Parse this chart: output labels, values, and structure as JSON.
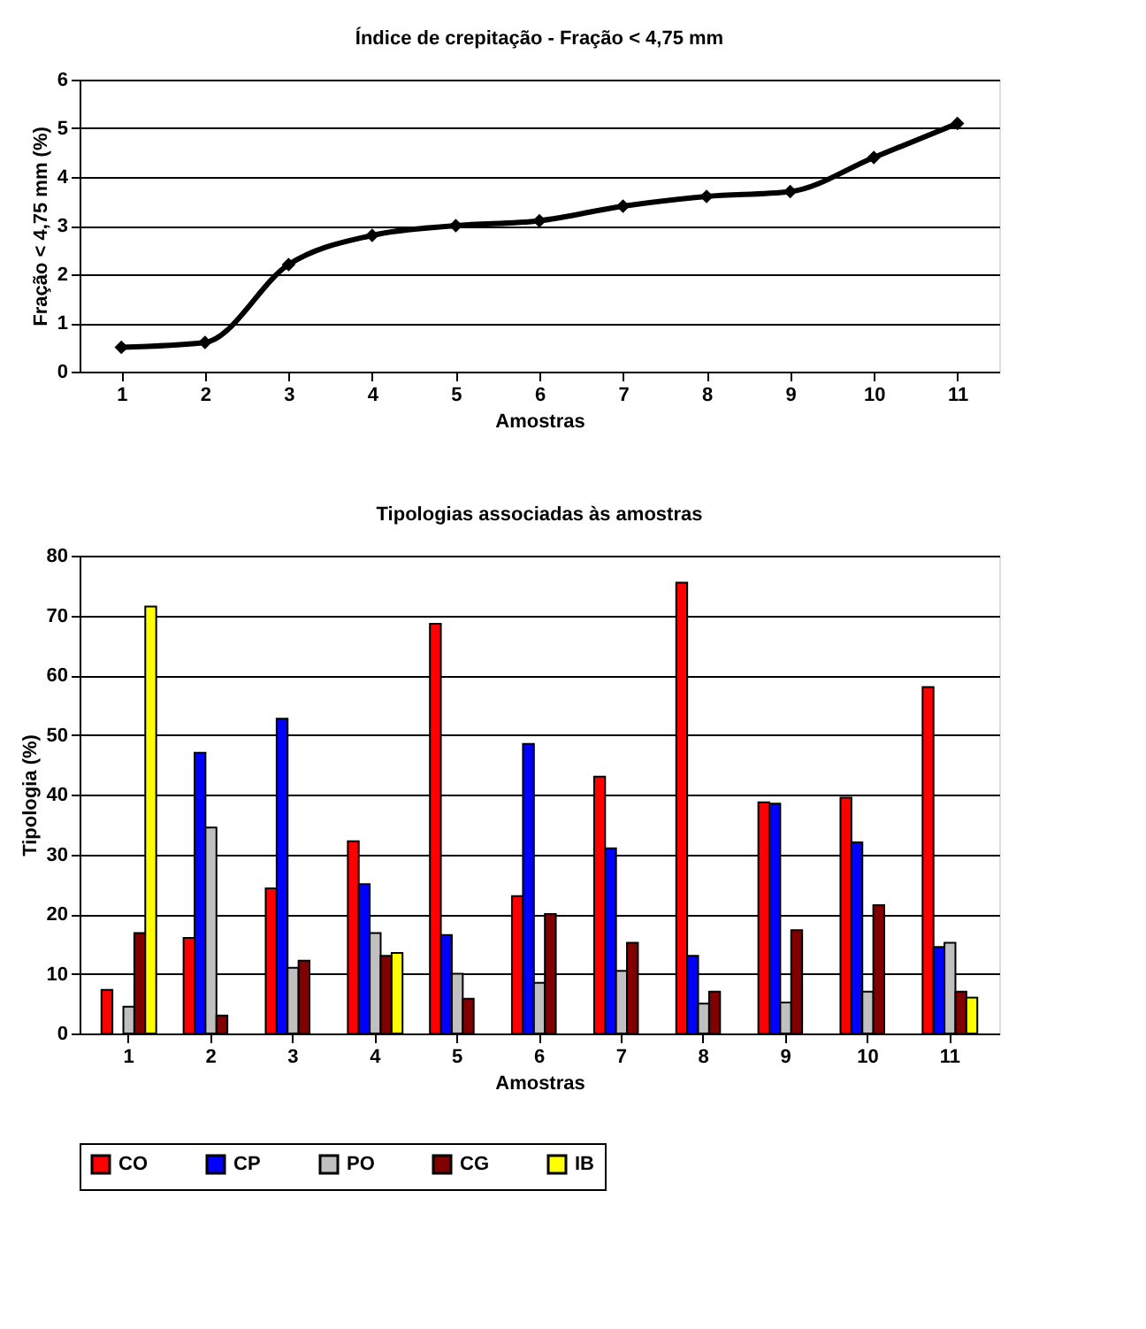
{
  "chart_data": [
    {
      "type": "line",
      "title": "Índice de crepitação - Fração < 4,75 mm",
      "xlabel": "Amostras",
      "ylabel": "Fração < 4,75 mm (%)",
      "categories": [
        "1",
        "2",
        "3",
        "4",
        "5",
        "6",
        "7",
        "8",
        "9",
        "10",
        "11"
      ],
      "series": [
        {
          "color": "#000000",
          "values": [
            0.5,
            0.6,
            2.2,
            2.8,
            3.0,
            3.1,
            3.4,
            3.6,
            3.7,
            4.4,
            5.1
          ]
        }
      ],
      "ylim": [
        0,
        6
      ],
      "yticks": [
        0,
        1,
        2,
        3,
        4,
        5,
        6
      ],
      "grid": "y",
      "marker": "diamond",
      "line_style": "solid"
    },
    {
      "type": "bar",
      "title": "Tipologias associadas às amostras",
      "xlabel": "Amostras",
      "ylabel": "Tipologia (%)",
      "categories": [
        "1",
        "2",
        "3",
        "4",
        "5",
        "6",
        "7",
        "8",
        "9",
        "10",
        "11"
      ],
      "series": [
        {
          "name": "CO",
          "color": "#ff0000",
          "values": [
            7.3,
            16,
            24.3,
            32.2,
            68.6,
            23,
            43,
            75.5,
            38.7,
            39.5,
            58
          ]
        },
        {
          "name": "CP",
          "color": "#0000ff",
          "values": [
            null,
            47,
            52.7,
            25,
            16.5,
            48.5,
            31,
            13,
            38.5,
            32,
            14.5
          ]
        },
        {
          "name": "PO",
          "color": "#c0c0c0",
          "values": [
            4.5,
            34.5,
            11,
            16.8,
            10,
            8.5,
            10.5,
            5,
            5.2,
            7,
            15.2
          ]
        },
        {
          "name": "CG",
          "color": "#800000",
          "values": [
            16.8,
            3,
            12.2,
            13,
            5.8,
            20,
            15.2,
            7,
            17.3,
            21.5,
            7
          ]
        },
        {
          "name": "IB",
          "color": "#ffff00",
          "values": [
            71.5,
            null,
            null,
            13.5,
            null,
            null,
            null,
            null,
            null,
            null,
            6
          ]
        }
      ],
      "ylim": [
        0,
        80
      ],
      "yticks": [
        0,
        10,
        20,
        30,
        40,
        50,
        60,
        70,
        80
      ],
      "grid": "y",
      "legend": "bottom"
    }
  ]
}
